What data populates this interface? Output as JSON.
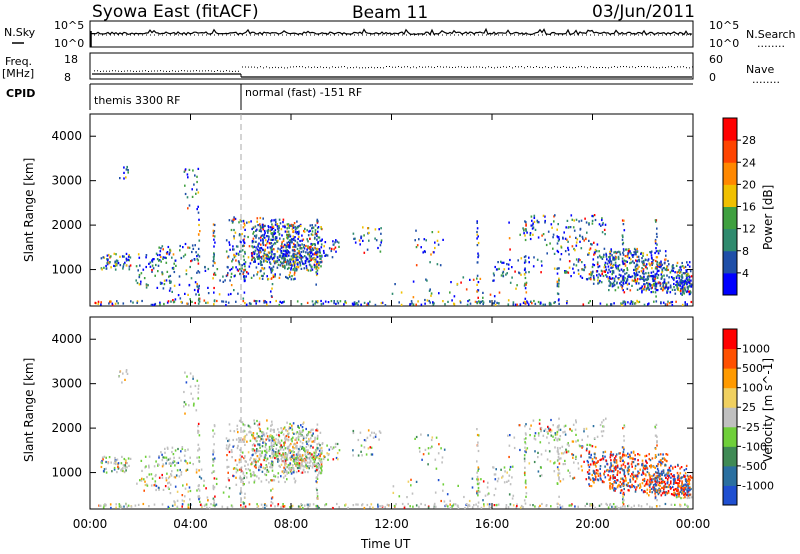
{
  "header": {
    "station": "Syowa East (fitACF)",
    "beam": "Beam 11",
    "date": "03/Jun/2011"
  },
  "labels": {
    "nsky": "N.Sky",
    "nsearch": "N.Search",
    "freq_line1": "Freq.",
    "freq_line2": "[MHz]",
    "nave": "Nave",
    "cpid": "CPID",
    "nsky_top": "10^5",
    "nsky_bottom": "10^0",
    "nsearch_top": "10^5",
    "nsearch_bottom": "10^0",
    "freq_top": "18",
    "freq_bottom": "8",
    "nave_top": "60",
    "nave_bottom": "0",
    "cpid_mode1": "themis 3300 RF",
    "cpid_mode2": "normal (fast) -151 RF",
    "dotted_legend": "........"
  },
  "chart_data": [
    {
      "type": "heatmap",
      "name": "power",
      "ylabel": "Slant Range [km]",
      "xlabel": "",
      "colorbar_label": "Power [dB]",
      "ylim": [
        180,
        4500
      ],
      "xlim": [
        0,
        24
      ],
      "yticks": [
        1000,
        2000,
        3000,
        4000
      ],
      "colorbar_ticks": [
        4,
        8,
        12,
        16,
        20,
        24,
        28
      ],
      "colorbar_colors": [
        "#0000ff",
        "#1f4fa8",
        "#2f8a6e",
        "#3fa03f",
        "#f0c000",
        "#ff8800",
        "#ff4400",
        "#ff0000"
      ],
      "mode_change_hour": 6.0
    },
    {
      "type": "heatmap",
      "name": "velocity",
      "ylabel": "Slant Range [km]",
      "xlabel": "Time UT",
      "colorbar_label": "Velocity [m s^-1]",
      "ylim": [
        180,
        4500
      ],
      "xlim": [
        0,
        24
      ],
      "yticks": [
        1000,
        2000,
        3000,
        4000
      ],
      "xticks": [
        "00:00",
        "04:00",
        "08:00",
        "12:00",
        "16:00",
        "20:00",
        "00:00"
      ],
      "colorbar_ticks": [
        "1000",
        "500",
        "100",
        "25",
        "-25",
        "-100",
        "-500",
        "-1000"
      ],
      "colorbar_colors": [
        "#1f4fd0",
        "#2a6fa0",
        "#3f8a55",
        "#6fcf3a",
        "#c0c0c0",
        "#f0d060",
        "#ff9a00",
        "#ff5000",
        "#ff0000"
      ],
      "mode_change_hour": 6.0
    }
  ],
  "colors": {
    "axis": "#000000",
    "dashed_mode_line": "#aaaaaa"
  }
}
